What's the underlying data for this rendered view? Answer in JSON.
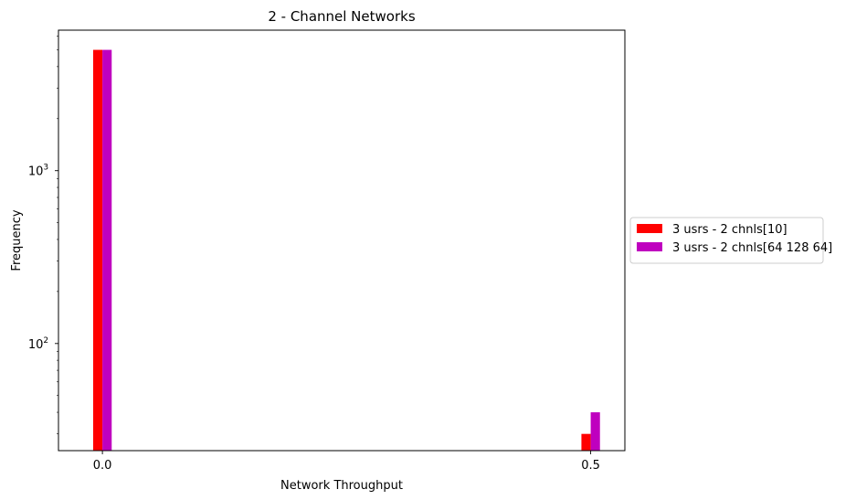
{
  "chart_data": {
    "type": "bar",
    "title": "2 - Channel Networks",
    "xlabel": "Network Throughput",
    "ylabel": "Frequency",
    "yscale": "log",
    "ylim": [
      24,
      6500
    ],
    "xlim": [
      -0.045,
      0.535
    ],
    "x_ticks": [
      0.0,
      0.5
    ],
    "x_tick_labels": [
      "0.0",
      "0.5"
    ],
    "y_major_ticks": [
      100,
      1000
    ],
    "y_tick_labels": [
      {
        "base": "10",
        "exp": "2"
      },
      {
        "base": "10",
        "exp": "3"
      }
    ],
    "bar_width": 0.0095,
    "categories": [
      "0.0",
      "0.5"
    ],
    "series": [
      {
        "name": "3 usrs - 2 chnls[10]",
        "color": "#ff0000",
        "x": [
          0.0,
          0.5
        ],
        "offset": -0.0095,
        "values": [
          5000,
          30
        ]
      },
      {
        "name": "3 usrs - 2 chnls[64 128 64]",
        "color": "#bf00bf",
        "x": [
          0.0,
          0.5
        ],
        "offset": 0.0,
        "values": [
          5000,
          40
        ]
      }
    ],
    "legend": "outside-right",
    "grid": false
  }
}
